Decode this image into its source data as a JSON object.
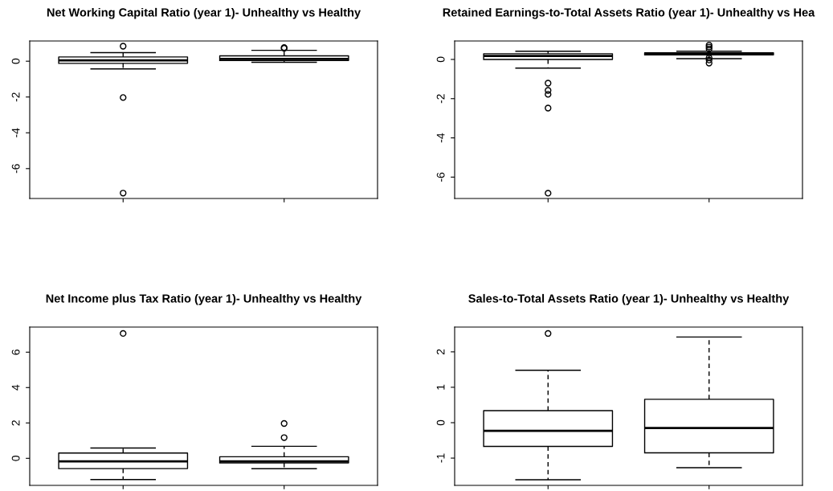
{
  "chart_data": [
    {
      "type": "box",
      "title": "Net Working Capital Ratio (year 1)- Unhealthy vs Healthy",
      "categories": [
        null,
        null
      ],
      "ylim": [
        -7.67,
        1.13
      ],
      "yticks": [
        0,
        -2,
        -4,
        -6
      ],
      "tick_labels": "y",
      "grid": false,
      "line_style": "dashed",
      "marker": "circle",
      "boxes": [
        {
          "low": -0.43,
          "q1": -0.12,
          "median": 0.05,
          "q3": 0.24,
          "high": 0.48,
          "outliers": [
            0.84,
            -2.03,
            -7.37
          ]
        },
        {
          "low": -0.06,
          "q1": 0.04,
          "median": 0.13,
          "q3": 0.3,
          "high": 0.61,
          "outliers": [
            0.72,
            0.76
          ]
        }
      ]
    },
    {
      "type": "box",
      "title": "Retained Earnings-to-Total Assets Ratio (year 1)- Unhealthy vs Hea",
      "categories": [
        null,
        null
      ],
      "ylim": [
        -7.09,
        0.94
      ],
      "yticks": [
        0,
        -2,
        -4,
        -6
      ],
      "tick_labels": "y",
      "grid": false,
      "line_style": "dashed",
      "marker": "circle",
      "boxes": [
        {
          "low": -0.44,
          "q1": 0.0,
          "median": 0.18,
          "q3": 0.29,
          "high": 0.42,
          "outliers": [
            -1.21,
            -1.58,
            -1.78,
            -2.48,
            -6.82
          ]
        },
        {
          "low": 0.04,
          "q1": 0.23,
          "median": 0.29,
          "q3": 0.34,
          "high": 0.42,
          "outliers": [
            0.73,
            0.63,
            0.53,
            0.08,
            -0.03,
            -0.19
          ]
        }
      ]
    },
    {
      "type": "box",
      "title": "Net Income plus Tax Ratio (year 1)- Unhealthy vs Healthy",
      "categories": [
        null,
        null
      ],
      "ylim": [
        -1.53,
        7.42
      ],
      "yticks": [
        0,
        2,
        4,
        6
      ],
      "tick_labels": "y",
      "grid": false,
      "line_style": "dashed",
      "marker": "circle",
      "boxes": [
        {
          "low": -1.2,
          "q1": -0.58,
          "median": -0.17,
          "q3": 0.3,
          "high": 0.58,
          "outliers": [
            7.06
          ]
        },
        {
          "low": -0.59,
          "q1": -0.26,
          "median": -0.17,
          "q3": 0.09,
          "high": 0.68,
          "outliers": [
            1.97,
            1.17
          ]
        }
      ]
    },
    {
      "type": "box",
      "title": "Sales-to-Total Assets Ratio (year 1)- Unhealthy vs Healthy",
      "categories": [
        null,
        null
      ],
      "ylim": [
        -1.77,
        2.7
      ],
      "yticks": [
        -1,
        0,
        1,
        2
      ],
      "tick_labels": "y",
      "grid": false,
      "line_style": "dashed",
      "marker": "circle",
      "boxes": [
        {
          "low": -1.61,
          "q1": -0.67,
          "median": -0.23,
          "q3": 0.34,
          "high": 1.48,
          "outliers": [
            2.52
          ]
        },
        {
          "low": -1.27,
          "q1": -0.85,
          "median": -0.15,
          "q3": 0.66,
          "high": 2.42
        }
      ]
    }
  ]
}
